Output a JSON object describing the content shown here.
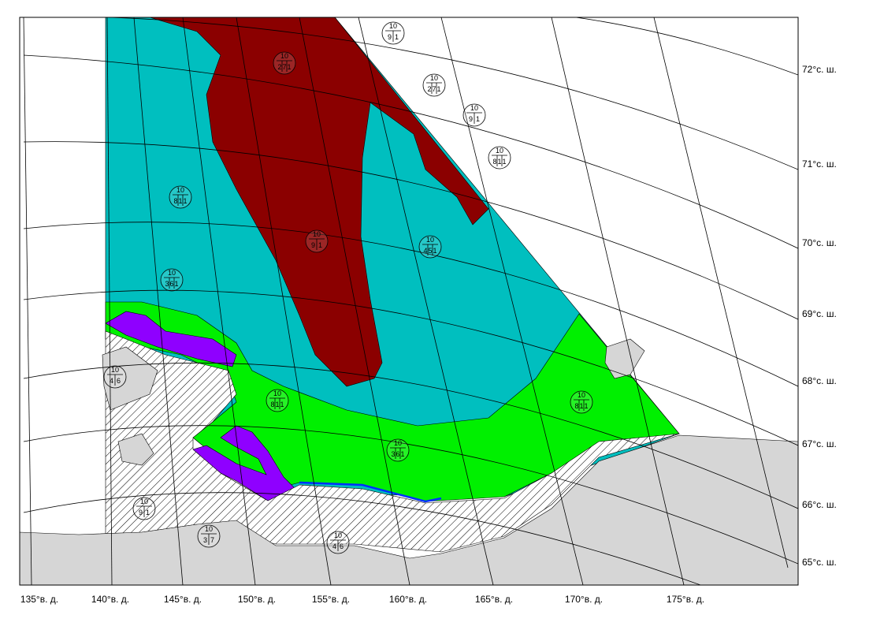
{
  "latitude_labels": [
    "72°с. ш.",
    "71°с. ш.",
    "70°с. ш.",
    "69°с. ш.",
    "68°с. ш.",
    "67°с. ш.",
    "66°с. ш.",
    "65°с. ш."
  ],
  "longitude_labels": [
    "135°в. д.",
    "140°в. д.",
    "145°в. д.",
    "150°в. д.",
    "155°в. д.",
    "160°в. д.",
    "165°в. д.",
    "170°в. д.",
    "175°в. д."
  ],
  "eggs": [
    {
      "top": "10",
      "parts": [
        "9",
        "1"
      ]
    },
    {
      "top": "10",
      "parts": [
        "2",
        "7",
        "1"
      ]
    },
    {
      "top": "10",
      "parts": [
        "2",
        "7",
        "1"
      ]
    },
    {
      "top": "10",
      "parts": [
        "9",
        "1"
      ]
    },
    {
      "top": "10",
      "parts": [
        "8",
        "1",
        "1"
      ]
    },
    {
      "top": "10",
      "parts": [
        "8",
        "1",
        "1"
      ]
    },
    {
      "top": "10",
      "parts": [
        "9",
        "1"
      ]
    },
    {
      "top": "10",
      "parts": [
        "4",
        "5",
        "1"
      ]
    },
    {
      "top": "10",
      "parts": [
        "3",
        "6",
        "1"
      ]
    },
    {
      "top": "10",
      "parts": [
        "4",
        "6"
      ]
    },
    {
      "top": "10",
      "parts": [
        "8",
        "1",
        "1"
      ]
    },
    {
      "top": "10",
      "parts": [
        "8",
        "1",
        "1"
      ]
    },
    {
      "top": "10",
      "parts": [
        "3",
        "6",
        "1"
      ]
    },
    {
      "top": "10",
      "parts": [
        "9",
        "1"
      ]
    },
    {
      "top": "10",
      "parts": [
        "3",
        "7"
      ]
    },
    {
      "top": "10",
      "parts": [
        "4",
        "6"
      ]
    }
  ]
}
